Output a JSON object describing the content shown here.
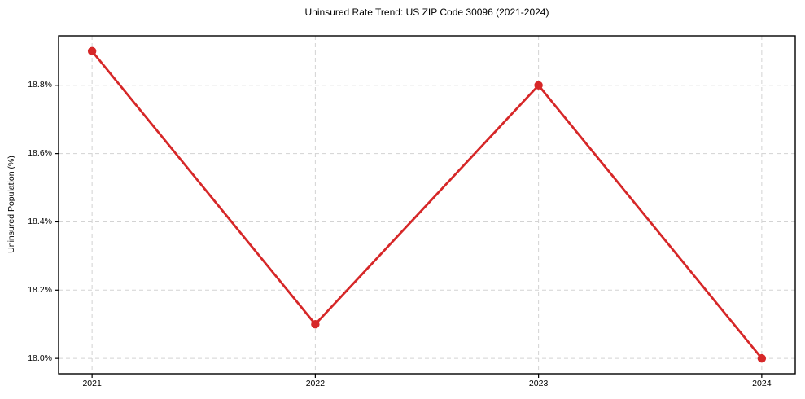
{
  "chart_data": {
    "type": "line",
    "title": "Uninsured Rate Trend: US ZIP Code 30096 (2021-2024)",
    "xlabel": "",
    "ylabel": "Uninsured Population (%)",
    "x": [
      2021,
      2022,
      2023,
      2024
    ],
    "values": [
      18.9,
      18.1,
      18.8,
      18.0
    ],
    "xlim": [
      2020.85,
      2024.15
    ],
    "ylim": [
      17.955,
      18.945
    ],
    "xticks": [
      2021,
      2022,
      2023,
      2024
    ],
    "xtick_labels": [
      "2021",
      "2022",
      "2023",
      "2024"
    ],
    "yticks": [
      18.0,
      18.2,
      18.4,
      18.6,
      18.8
    ],
    "ytick_labels": [
      "18.0%",
      "18.2%",
      "18.4%",
      "18.6%",
      "18.8%"
    ],
    "grid": "dashed",
    "grid_color": "#d3d3d3",
    "line_color": "#d62728",
    "marker": "circle",
    "border_color": "#000000",
    "legend_position": "none"
  }
}
